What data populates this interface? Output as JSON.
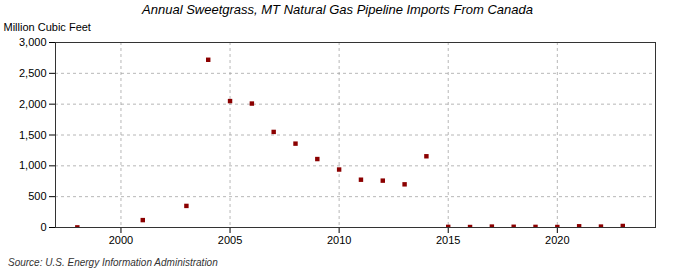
{
  "chart_data": {
    "type": "scatter",
    "title": "Annual Sweetgrass, MT Natural Gas Pipeline Imports From Canada",
    "ylabel": "Million Cubic Feet",
    "annotation": "Source: U.S. Energy Information Administration",
    "x": [
      1998,
      2001,
      2003,
      2004,
      2005,
      2006,
      2007,
      2008,
      2009,
      2010,
      2011,
      2012,
      2013,
      2014,
      2015,
      2016,
      2017,
      2018,
      2019,
      2020,
      2021,
      2022,
      2023
    ],
    "values": [
      2,
      120,
      350,
      2720,
      2050,
      2010,
      1550,
      1360,
      1110,
      940,
      775,
      760,
      700,
      1155,
      10,
      8,
      15,
      12,
      10,
      8,
      20,
      15,
      25
    ],
    "color": "#8b0000",
    "marker": "square",
    "xlim": [
      1997,
      2024.5
    ],
    "ylim": [
      0,
      3000
    ],
    "xticks": [
      2000,
      2005,
      2010,
      2015,
      2020
    ],
    "yticks": [
      0,
      500,
      {
        "value": 1000,
        "label": "1,000"
      },
      {
        "value": 1500,
        "label": "1,500"
      },
      {
        "value": 2000,
        "label": "2,000"
      },
      {
        "value": 2500,
        "label": "2,500"
      },
      {
        "value": 3000,
        "label": "3,000"
      }
    ],
    "grid": true
  }
}
